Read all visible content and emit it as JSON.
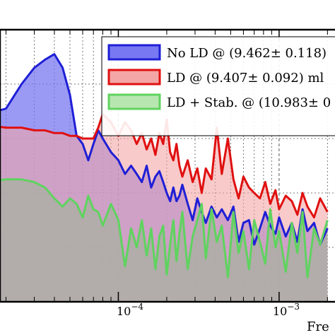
{
  "chart_data": {
    "type": "area",
    "x_scale": "log",
    "xlabel": "Fre",
    "xlim": [
      1e-05,
      0.002
    ],
    "ylim": [
      0,
      1
    ],
    "grid": true,
    "legend_placement": "top-right",
    "tick_labels": [
      {
        "base": "10",
        "exp": "−4"
      },
      {
        "base": "10",
        "exp": "−3"
      }
    ],
    "series": [
      {
        "name": "No LD @ (9.462± 0.118)",
        "stroke": "#1f1fd6",
        "fill": "#7878f2",
        "x": [
          1e-05,
          1.5e-05,
          2e-05,
          2.5e-05,
          3e-05,
          3.5e-05,
          4e-05,
          4.5e-05,
          5e-05,
          5.5e-05,
          6e-05,
          6.5e-05,
          7e-05,
          7.5e-05,
          8e-05,
          9e-05,
          0.0001,
          0.00011,
          0.00012,
          0.00013,
          0.00014,
          0.00015,
          0.00016,
          0.00017,
          0.00018,
          0.00019,
          0.0002,
          0.00021,
          0.00022,
          0.00023,
          0.00024,
          0.00025,
          0.00027,
          0.00029,
          0.00031,
          0.00033,
          0.00035,
          0.00038,
          0.00041,
          0.00044,
          0.00048,
          0.00052,
          0.00056,
          0.0006,
          0.00065,
          0.0007,
          0.00076,
          0.00082,
          0.00088,
          0.00095,
          0.001,
          0.0011,
          0.0012,
          0.0013,
          0.0014,
          0.0015,
          0.00165,
          0.0018,
          0.002
        ],
        "values": [
          0.69,
          0.69,
          0.71,
          0.8,
          0.86,
          0.89,
          0.91,
          0.86,
          0.76,
          0.61,
          0.58,
          0.52,
          0.58,
          0.63,
          0.6,
          0.55,
          0.52,
          0.47,
          0.5,
          0.47,
          0.44,
          0.5,
          0.42,
          0.46,
          0.48,
          0.44,
          0.4,
          0.37,
          0.42,
          0.37,
          0.39,
          0.43,
          0.36,
          0.3,
          0.38,
          0.33,
          0.29,
          0.35,
          0.31,
          0.34,
          0.3,
          0.35,
          0.22,
          0.29,
          0.3,
          0.21,
          0.27,
          0.33,
          0.28,
          0.25,
          0.31,
          0.24,
          0.29,
          0.22,
          0.34,
          0.26,
          0.29,
          0.21,
          0.27
        ]
      },
      {
        "name": "LD @ (9.407± 0.092) ml",
        "stroke": "#e01010",
        "fill": "#f4a6a6",
        "x": [
          1e-05,
          1.5e-05,
          2e-05,
          2.5e-05,
          3e-05,
          3.5e-05,
          4e-05,
          4.5e-05,
          5e-05,
          5.5e-05,
          6e-05,
          6.5e-05,
          7e-05,
          7.5e-05,
          8e-05,
          9e-05,
          0.0001,
          0.00011,
          0.00012,
          0.00013,
          0.00014,
          0.00015,
          0.00016,
          0.00017,
          0.00018,
          0.00019,
          0.0002,
          0.00021,
          0.00022,
          0.00023,
          0.00024,
          0.00025,
          0.00027,
          0.00029,
          0.00031,
          0.00033,
          0.00035,
          0.00038,
          0.00041,
          0.00044,
          0.00048,
          0.00052,
          0.00056,
          0.0006,
          0.00065,
          0.0007,
          0.00076,
          0.00082,
          0.00088,
          0.00095,
          0.001,
          0.0011,
          0.0012,
          0.0013,
          0.0014,
          0.0015,
          0.00165,
          0.0018,
          0.002
        ],
        "values": [
          0.65,
          0.65,
          0.64,
          0.64,
          0.63,
          0.63,
          0.62,
          0.62,
          0.61,
          0.61,
          0.6,
          0.6,
          0.6,
          0.64,
          0.69,
          0.66,
          0.61,
          0.66,
          0.63,
          0.58,
          0.62,
          0.56,
          0.6,
          0.54,
          0.62,
          0.58,
          0.67,
          0.55,
          0.52,
          0.58,
          0.5,
          0.46,
          0.52,
          0.44,
          0.49,
          0.4,
          0.49,
          0.45,
          0.64,
          0.47,
          0.6,
          0.45,
          0.38,
          0.46,
          0.42,
          0.4,
          0.38,
          0.44,
          0.36,
          0.41,
          0.34,
          0.39,
          0.37,
          0.32,
          0.4,
          0.35,
          0.31,
          0.38,
          0.33
        ]
      },
      {
        "name": "LD + Stab. @ (10.983± 0",
        "stroke": "#5fd35f",
        "fill": "#a8b0a0",
        "x": [
          1e-05,
          1.5e-05,
          2e-05,
          2.5e-05,
          3e-05,
          3.5e-05,
          4e-05,
          4.5e-05,
          5e-05,
          5.5e-05,
          6e-05,
          6.5e-05,
          7e-05,
          7.5e-05,
          8e-05,
          9e-05,
          0.0001,
          0.00011,
          0.00012,
          0.00013,
          0.00014,
          0.00015,
          0.00016,
          0.00017,
          0.00018,
          0.00019,
          0.0002,
          0.00021,
          0.00022,
          0.00023,
          0.00024,
          0.00025,
          0.00027,
          0.00029,
          0.00031,
          0.00033,
          0.00035,
          0.00038,
          0.00041,
          0.00044,
          0.00048,
          0.00052,
          0.00056,
          0.0006,
          0.00065,
          0.0007,
          0.00076,
          0.00082,
          0.00088,
          0.00095,
          0.001,
          0.0011,
          0.0012,
          0.0013,
          0.0014,
          0.0015,
          0.00165,
          0.0018,
          0.002
        ],
        "values": [
          0.43,
          0.44,
          0.45,
          0.45,
          0.44,
          0.42,
          0.38,
          0.35,
          0.38,
          0.36,
          0.31,
          0.39,
          0.34,
          0.33,
          0.28,
          0.36,
          0.3,
          0.13,
          0.27,
          0.2,
          0.3,
          0.17,
          0.27,
          0.12,
          0.24,
          0.28,
          0.1,
          0.21,
          0.3,
          0.15,
          0.25,
          0.33,
          0.12,
          0.24,
          0.3,
          0.36,
          0.16,
          0.34,
          0.22,
          0.28,
          0.09,
          0.33,
          0.18,
          0.26,
          0.12,
          0.3,
          0.22,
          0.14,
          0.34,
          0.2,
          0.26,
          0.11,
          0.29,
          0.18,
          0.33,
          0.09,
          0.27,
          0.21,
          0.3
        ]
      }
    ]
  }
}
